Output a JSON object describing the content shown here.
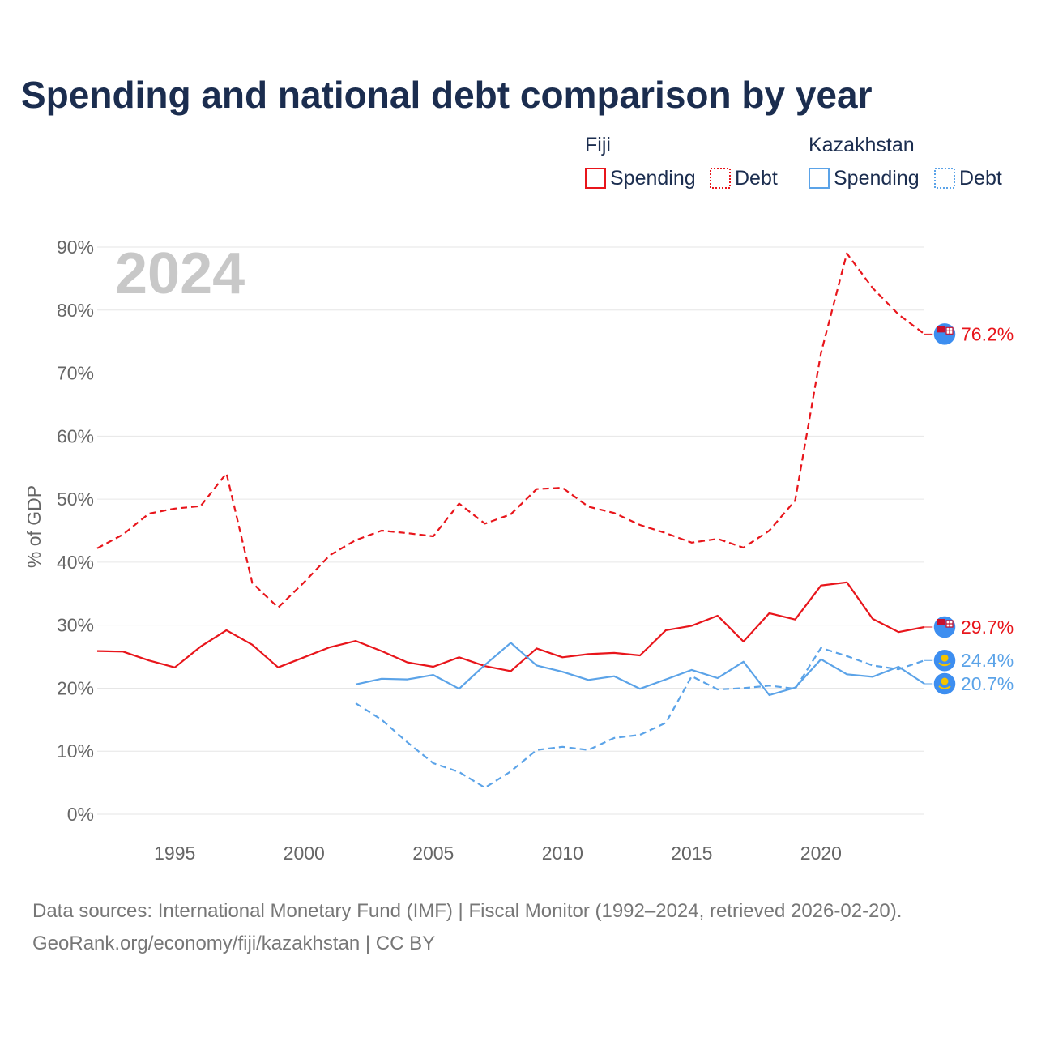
{
  "chart_data": {
    "type": "line",
    "title": "Spending and national debt comparison by year",
    "watermark_year": "2024",
    "ylabel": "% of GDP",
    "xlabel": "",
    "ylim": [
      0,
      90
    ],
    "xlim": [
      1992,
      2024
    ],
    "y_ticks": [
      0,
      10,
      20,
      30,
      40,
      50,
      60,
      70,
      80,
      90
    ],
    "y_tick_labels": [
      "0%",
      "10%",
      "20%",
      "30%",
      "40%",
      "50%",
      "60%",
      "70%",
      "80%",
      "90%"
    ],
    "x_ticks": [
      1995,
      2000,
      2005,
      2010,
      2015,
      2020
    ],
    "x_tick_labels": [
      "1995",
      "2000",
      "2005",
      "2010",
      "2015",
      "2020"
    ],
    "grid": true,
    "legend": {
      "groups": [
        {
          "country": "Fiji",
          "items": [
            "Spending",
            "Debt"
          ],
          "color": "#e8151b"
        },
        {
          "country": "Kazakhstan",
          "items": [
            "Spending",
            "Debt"
          ],
          "color": "#5ba3e8"
        }
      ]
    },
    "series": [
      {
        "name": "Fiji Spending",
        "country": "Fiji",
        "metric": "Spending",
        "style": "solid",
        "color": "#e8151b",
        "x": [
          1992,
          1993,
          1994,
          1995,
          1996,
          1997,
          1998,
          1999,
          2000,
          2001,
          2002,
          2003,
          2004,
          2005,
          2006,
          2007,
          2008,
          2009,
          2010,
          2011,
          2012,
          2013,
          2014,
          2015,
          2016,
          2017,
          2018,
          2019,
          2020,
          2021,
          2022,
          2023,
          2024
        ],
        "values": [
          25.9,
          25.8,
          24.4,
          23.3,
          26.6,
          29.2,
          26.9,
          23.3,
          24.9,
          26.5,
          27.5,
          25.9,
          24.1,
          23.4,
          24.9,
          23.5,
          22.7,
          26.3,
          24.9,
          25.4,
          25.6,
          25.2,
          29.2,
          29.9,
          31.5,
          27.4,
          31.9,
          30.9,
          36.3,
          36.8,
          31.0,
          28.9,
          29.7
        ],
        "end_label": "29.7%"
      },
      {
        "name": "Fiji Debt",
        "country": "Fiji",
        "metric": "Debt",
        "style": "dashed",
        "color": "#e8151b",
        "x": [
          1992,
          1993,
          1994,
          1995,
          1996,
          1997,
          1998,
          1999,
          2000,
          2001,
          2002,
          2003,
          2004,
          2005,
          2006,
          2007,
          2008,
          2009,
          2010,
          2011,
          2012,
          2013,
          2014,
          2015,
          2016,
          2017,
          2018,
          2019,
          2020,
          2021,
          2022,
          2023,
          2024
        ],
        "values": [
          42.2,
          44.4,
          47.7,
          48.5,
          48.9,
          54.1,
          36.7,
          32.8,
          36.8,
          41.1,
          43.5,
          45.0,
          44.6,
          44.1,
          49.3,
          46.1,
          47.6,
          51.6,
          51.8,
          48.8,
          47.8,
          45.9,
          44.6,
          43.1,
          43.7,
          42.3,
          45.0,
          49.8,
          73.2,
          89.0,
          83.5,
          79.3,
          76.2
        ],
        "end_label": "76.2%"
      },
      {
        "name": "Kazakhstan Spending",
        "country": "Kazakhstan",
        "metric": "Spending",
        "style": "solid",
        "color": "#5ba3e8",
        "x": [
          2002,
          2003,
          2004,
          2005,
          2006,
          2007,
          2008,
          2009,
          2010,
          2011,
          2012,
          2013,
          2014,
          2015,
          2016,
          2017,
          2018,
          2019,
          2020,
          2021,
          2022,
          2023,
          2024
        ],
        "values": [
          20.6,
          21.5,
          21.4,
          22.1,
          19.9,
          23.7,
          27.2,
          23.6,
          22.6,
          21.3,
          21.9,
          19.9,
          21.4,
          22.9,
          21.6,
          24.2,
          18.9,
          20.1,
          24.6,
          22.2,
          21.8,
          23.4,
          20.7
        ],
        "end_label": "20.7%"
      },
      {
        "name": "Kazakhstan Debt",
        "country": "Kazakhstan",
        "metric": "Debt",
        "style": "dashed",
        "color": "#5ba3e8",
        "x": [
          2002,
          2003,
          2004,
          2005,
          2006,
          2007,
          2008,
          2009,
          2010,
          2011,
          2012,
          2013,
          2014,
          2015,
          2016,
          2017,
          2018,
          2019,
          2020,
          2021,
          2022,
          2023,
          2024
        ],
        "values": [
          17.6,
          15.0,
          11.4,
          8.1,
          6.7,
          4.2,
          6.8,
          10.2,
          10.7,
          10.2,
          12.1,
          12.6,
          14.5,
          21.9,
          19.8,
          20.0,
          20.4,
          19.9,
          26.4,
          25.1,
          23.6,
          23.0,
          24.4
        ],
        "end_label": "24.4%"
      }
    ],
    "source_line1": "Data sources: International Monetary Fund (IMF) | Fiscal Monitor (1992–2024, retrieved 2026-02-20).",
    "source_line2": "GeoRank.org/economy/fiji/kazakhstan | CC BY"
  }
}
